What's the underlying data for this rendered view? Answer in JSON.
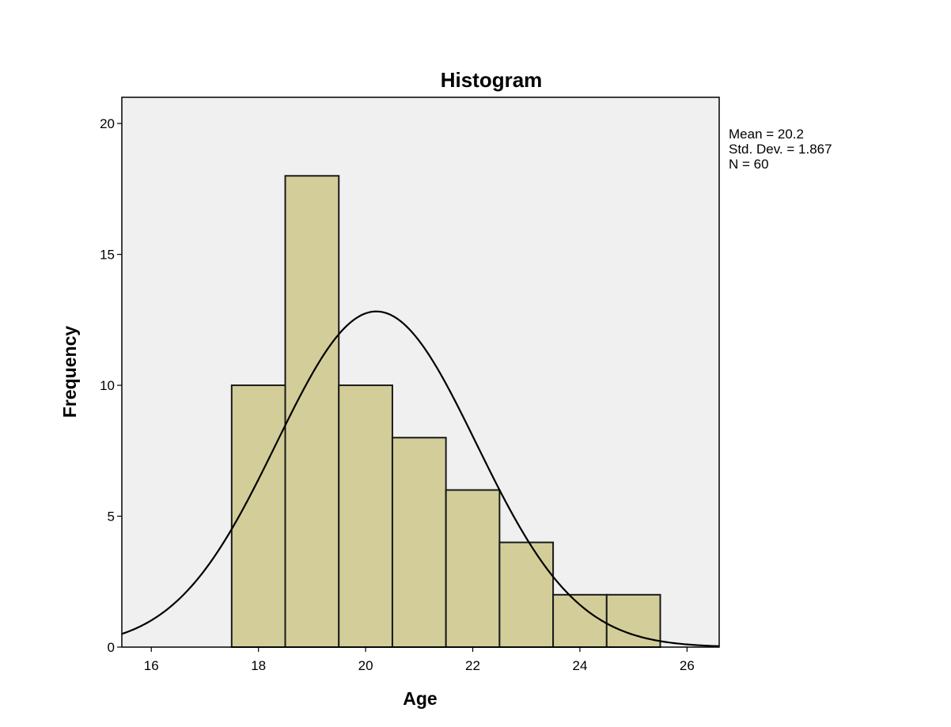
{
  "chart_data": {
    "type": "bar",
    "title": "Histogram",
    "xlabel": "Age",
    "ylabel": "Frequency",
    "xlim": [
      15.45,
      26.6
    ],
    "ylim": [
      0,
      21
    ],
    "x_ticks": [
      16,
      18,
      20,
      22,
      24,
      26
    ],
    "y_ticks": [
      0,
      5,
      10,
      15,
      20
    ],
    "grid": false,
    "bins": [
      {
        "start": 17.5,
        "end": 18.5,
        "value": 10
      },
      {
        "start": 18.5,
        "end": 19.5,
        "value": 18
      },
      {
        "start": 19.5,
        "end": 20.5,
        "value": 10
      },
      {
        "start": 20.5,
        "end": 21.5,
        "value": 8
      },
      {
        "start": 21.5,
        "end": 22.5,
        "value": 6
      },
      {
        "start": 22.5,
        "end": 23.5,
        "value": 4
      },
      {
        "start": 23.5,
        "end": 24.5,
        "value": 2
      },
      {
        "start": 24.5,
        "end": 25.5,
        "value": 2
      }
    ],
    "normal_curve": {
      "mean": 20.2,
      "std_dev": 1.867,
      "n": 60,
      "bin_width": 1
    },
    "stats_labels": [
      "Mean = 20.2",
      "Std. Dev. = 1.867",
      "N = 60"
    ],
    "legend_position": "top-right"
  },
  "colors": {
    "plot_background": "#f0f0f0",
    "bar_fill": "#d3ce99",
    "bar_stroke": "#1a1a1a",
    "curve": "#000000",
    "frame": "#000000"
  }
}
